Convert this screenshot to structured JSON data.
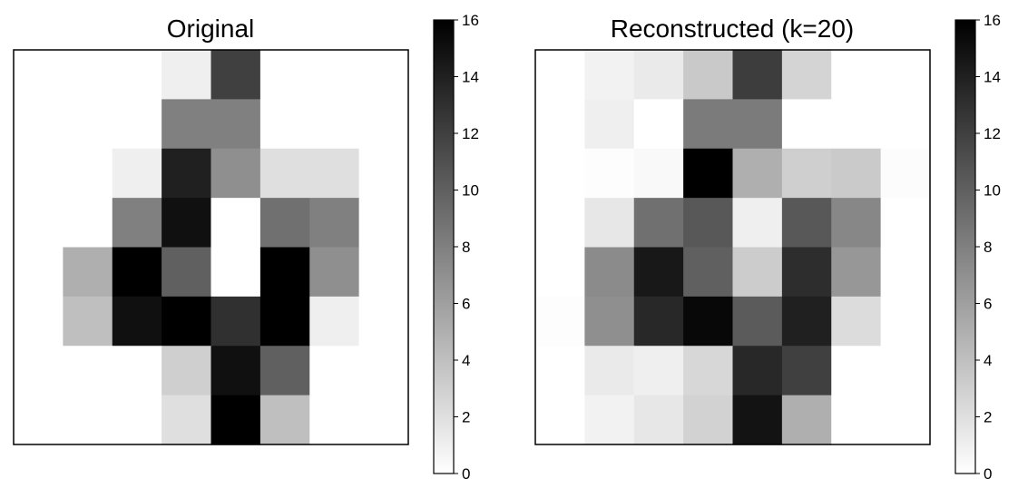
{
  "chart_data": [
    {
      "type": "heatmap",
      "title": "Original",
      "colormap": "gray_r",
      "vmin": 0,
      "vmax": 16,
      "colorbar_ticks": [
        0,
        2,
        4,
        6,
        8,
        10,
        12,
        14,
        16
      ],
      "axis_ticks_visible": false,
      "grid": false,
      "values": [
        [
          0,
          0,
          0,
          1,
          12,
          0,
          0,
          0
        ],
        [
          0,
          0,
          0,
          8,
          8,
          0,
          0,
          0
        ],
        [
          0,
          0,
          1,
          14,
          7,
          2,
          2,
          0
        ],
        [
          0,
          0,
          8,
          15,
          0,
          9,
          8,
          0
        ],
        [
          0,
          5,
          16,
          10,
          0,
          16,
          7,
          0
        ],
        [
          0,
          4,
          15,
          16,
          13,
          16,
          1,
          0
        ],
        [
          0,
          0,
          0,
          3,
          15,
          10,
          0,
          0
        ],
        [
          0,
          0,
          0,
          2,
          16,
          4,
          0,
          0
        ]
      ]
    },
    {
      "type": "heatmap",
      "title": "Reconstructed (k=20)",
      "colormap": "gray_r",
      "vmin": 0,
      "vmax": 16,
      "colorbar_ticks": [
        0,
        2,
        4,
        6,
        8,
        10,
        12,
        14,
        16
      ],
      "axis_ticks_visible": false,
      "grid": false,
      "values": [
        [
          0,
          0.8,
          1.3,
          3.4,
          12.2,
          2.7,
          0,
          0
        ],
        [
          0,
          1.0,
          0,
          8.3,
          8.3,
          0,
          0,
          0
        ],
        [
          0,
          0.1,
          0.4,
          16.0,
          5.0,
          3.0,
          3.3,
          0.2
        ],
        [
          0,
          1.5,
          9.0,
          10.5,
          1.0,
          10.5,
          7.5,
          0
        ],
        [
          0,
          7.3,
          14.5,
          10.0,
          3.2,
          13.2,
          6.5,
          0
        ],
        [
          0.1,
          7.0,
          13.5,
          15.5,
          10.3,
          14.0,
          2.2,
          0
        ],
        [
          0,
          1.3,
          1.0,
          2.5,
          13.5,
          12.0,
          0,
          0
        ],
        [
          0,
          0.8,
          1.5,
          2.8,
          14.8,
          5.0,
          0,
          0
        ]
      ]
    }
  ]
}
